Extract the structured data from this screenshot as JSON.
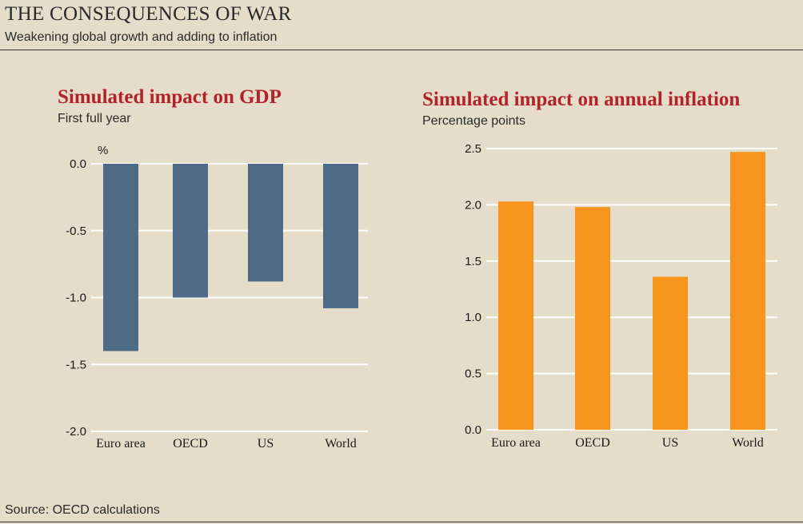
{
  "header": {
    "title": "THE CONSEQUENCES OF WAR",
    "subtitle": "Weakening global growth and adding to inflation"
  },
  "footer": {
    "source": "Source: OECD calculations"
  },
  "colors": {
    "gdp_bar": "#4e6a87",
    "inflation_bar": "#f7941d",
    "title_red": "#b3222a",
    "grid": "#ffffff"
  },
  "chart_data": [
    {
      "type": "bar",
      "title": "Simulated impact on GDP",
      "subtitle": "First full year",
      "unit_label": "%",
      "categories": [
        "Euro area",
        "OECD",
        "US",
        "World"
      ],
      "values": [
        -1.4,
        -1.0,
        -0.88,
        -1.08
      ],
      "ylim": [
        -2.0,
        0.0
      ],
      "yticks": [
        0.0,
        -0.5,
        -1.0,
        -1.5,
        -2.0
      ],
      "ytick_labels": [
        "0.0",
        "-0.5",
        "-1.0",
        "-1.5",
        "-2.0"
      ],
      "grid": true
    },
    {
      "type": "bar",
      "title": "Simulated impact on annual inflation",
      "subtitle": "Percentage points",
      "categories": [
        "Euro area",
        "OECD",
        "US",
        "World"
      ],
      "values": [
        2.03,
        1.98,
        1.36,
        2.47
      ],
      "ylim": [
        0.0,
        2.5
      ],
      "yticks": [
        2.5,
        2.0,
        1.5,
        1.0,
        0.5,
        0.0
      ],
      "ytick_labels": [
        "2.5",
        "2.0",
        "1.5",
        "1.0",
        "0.5",
        "0.0"
      ],
      "grid": true
    }
  ]
}
